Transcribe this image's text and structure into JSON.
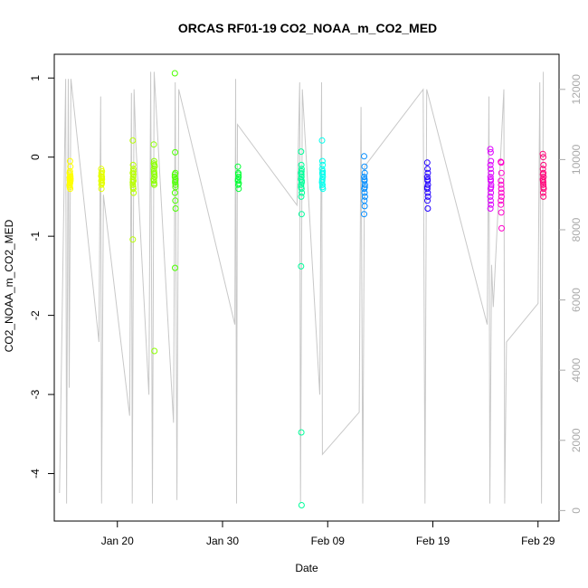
{
  "chart_data": {
    "type": "scatter",
    "title": "ORCAS RF01-19 CO2_NOAA_m_CO2_MED",
    "xlabel": "Date",
    "ylabel": "CO2_NOAA_m_CO2_MED",
    "xlim": [
      "2016-01-14",
      "2016-03-02"
    ],
    "ylim": [
      -4.6,
      1.3
    ],
    "x_ticks": [
      {
        "date": "2016-01-20",
        "label": "Jan 20"
      },
      {
        "date": "2016-01-30",
        "label": "Jan 30"
      },
      {
        "date": "2016-02-09",
        "label": "Feb 09"
      },
      {
        "date": "2016-02-19",
        "label": "Feb 19"
      },
      {
        "date": "2016-02-29",
        "label": "Feb 29"
      }
    ],
    "y_ticks": [
      1,
      0,
      -1,
      -2,
      -3,
      -4
    ],
    "y2_ticks": [
      0,
      2000,
      4000,
      6000,
      8000,
      10000,
      12000
    ],
    "y2lim": [
      -300,
      13000
    ],
    "colors": {
      "axis": "#000000",
      "secondary_axis": "#aaaaaa",
      "altitude_line": "#c8c8c8"
    },
    "flights": [
      {
        "date": "2016-01-15",
        "color": "#ffff00",
        "values": [
          -0.35,
          -0.3,
          -0.25,
          -0.2,
          -0.32,
          -0.28,
          -0.38,
          -0.22,
          -0.3,
          -0.18,
          -0.4,
          -0.26,
          -0.33,
          -0.24,
          -0.36,
          -0.05,
          -0.12,
          -0.29,
          -0.31,
          -0.27
        ]
      },
      {
        "date": "2016-01-18",
        "color": "#e5ff00",
        "values": [
          -0.15,
          -0.2,
          -0.25,
          -0.3,
          -0.22,
          -0.28,
          -0.35,
          -0.32,
          -0.18,
          -0.4,
          -0.26,
          -0.24,
          -0.3,
          -0.33
        ]
      },
      {
        "date": "2016-01-21",
        "color": "#b8ff00",
        "values": [
          0.21,
          -0.1,
          -0.15,
          -0.2,
          -0.25,
          -0.3,
          -0.35,
          -0.4,
          -0.45,
          -0.28,
          -0.22,
          -0.32,
          -0.38,
          -0.18,
          -1.04,
          -0.3
        ]
      },
      {
        "date": "2016-01-23",
        "color": "#8cff00",
        "values": [
          0.16,
          -0.05,
          -0.1,
          -0.15,
          -0.2,
          -0.25,
          -0.3,
          -0.35,
          -0.12,
          -0.18,
          -0.22,
          -0.28,
          -0.33,
          -2.45,
          -0.08
        ]
      },
      {
        "date": "2016-01-25",
        "color": "#4cff00",
        "values": [
          1.06,
          0.06,
          -0.2,
          -0.25,
          -0.3,
          -0.35,
          -0.45,
          -0.55,
          -0.65,
          -1.4,
          -0.28,
          -0.22,
          -0.32,
          -0.38
        ]
      },
      {
        "date": "2016-01-31",
        "color": "#00ff33",
        "values": [
          -0.12,
          -0.2,
          -0.25,
          -0.3,
          -0.35,
          -0.4,
          -0.28,
          -0.22,
          -0.33
        ]
      },
      {
        "date": "2016-02-06",
        "color": "#00ff9a",
        "values": [
          0.07,
          -0.1,
          -0.15,
          -0.2,
          -0.25,
          -0.3,
          -0.35,
          -0.4,
          -0.45,
          -0.5,
          -0.72,
          -1.38,
          -3.48,
          -4.4,
          -0.28,
          -0.22,
          -0.32,
          -0.38,
          -0.18
        ]
      },
      {
        "date": "2016-02-08",
        "color": "#00ffee",
        "values": [
          0.21,
          -0.05,
          -0.1,
          -0.15,
          -0.2,
          -0.25,
          -0.3,
          -0.35,
          -0.4,
          -0.28,
          -0.22,
          -0.32,
          -0.38,
          -0.18
        ]
      },
      {
        "date": "2016-02-12",
        "color": "#008cff",
        "values": [
          0.01,
          -0.12,
          -0.2,
          -0.25,
          -0.3,
          -0.35,
          -0.4,
          -0.45,
          -0.5,
          -0.55,
          -0.62,
          -0.72,
          -0.28,
          -0.38
        ]
      },
      {
        "date": "2016-02-18",
        "color": "#2200ff",
        "values": [
          -0.07,
          -0.15,
          -0.2,
          -0.25,
          -0.3,
          -0.35,
          -0.4,
          -0.45,
          -0.5,
          -0.55,
          -0.65,
          -0.38,
          -0.28
        ]
      },
      {
        "date": "2016-02-24",
        "color": "#dd00ff",
        "values": [
          0.1,
          0.06,
          -0.05,
          -0.1,
          -0.15,
          -0.2,
          -0.25,
          -0.3,
          -0.35,
          -0.4,
          -0.45,
          -0.5,
          -0.55,
          -0.6,
          -0.65,
          -0.28,
          -0.38
        ]
      },
      {
        "date": "2016-02-25",
        "color": "#ff00cc",
        "values": [
          -0.06,
          -0.07,
          -0.2,
          -0.3,
          -0.4,
          -0.5,
          -0.6,
          -0.7,
          -0.9,
          -0.35,
          -0.45,
          -0.55
        ]
      },
      {
        "date": "2016-02-29",
        "color": "#ff0077",
        "values": [
          0.04,
          0.0,
          -0.1,
          -0.15,
          -0.2,
          -0.25,
          -0.3,
          -0.35,
          -0.4,
          -0.45,
          -0.5,
          -0.28,
          -0.32,
          -0.38,
          -0.22
        ]
      }
    ],
    "altitude_trace": [
      [
        "2016-01-14 12:00",
        500
      ],
      [
        "2016-01-15 02:00",
        12300
      ],
      [
        "2016-01-15 04:00",
        200
      ],
      [
        "2016-01-15 08:00",
        12300
      ],
      [
        "2016-01-15 10:00",
        3500
      ],
      [
        "2016-01-15 14:00",
        12300
      ],
      [
        "2016-01-18 06:00",
        4800
      ],
      [
        "2016-01-18 10:00",
        11800
      ],
      [
        "2016-01-18 12:00",
        200
      ],
      [
        "2016-01-18 16:00",
        9000
      ],
      [
        "2016-01-21 04:00",
        2700
      ],
      [
        "2016-01-21 08:00",
        11900
      ],
      [
        "2016-01-21 10:00",
        200
      ],
      [
        "2016-01-21 14:00",
        12000
      ],
      [
        "2016-01-21 18:00",
        10500
      ],
      [
        "2016-01-23 00:00",
        3300
      ],
      [
        "2016-01-23 04:00",
        12500
      ],
      [
        "2016-01-23 08:00",
        200
      ],
      [
        "2016-01-23 12:00",
        12500
      ],
      [
        "2016-01-25 08:00",
        2500
      ],
      [
        "2016-01-25 12:00",
        12200
      ],
      [
        "2016-01-25 16:00",
        300
      ],
      [
        "2016-01-25 20:00",
        12000
      ],
      [
        "2016-01-31 04:00",
        5300
      ],
      [
        "2016-01-31 06:00",
        12300
      ],
      [
        "2016-01-31 08:00",
        200
      ],
      [
        "2016-01-31 10:00",
        11000
      ],
      [
        "2016-02-06 02:00",
        8700
      ],
      [
        "2016-02-06 08:00",
        12200
      ],
      [
        "2016-02-06 10:00",
        200
      ],
      [
        "2016-02-06 14:00",
        12000
      ],
      [
        "2016-02-08 06:00",
        3300
      ],
      [
        "2016-02-08 10:00",
        12200
      ],
      [
        "2016-02-08 12:00",
        1600
      ],
      [
        "2016-02-12 00:00",
        2800
      ],
      [
        "2016-02-12 04:00",
        11500
      ],
      [
        "2016-02-12 08:00",
        200
      ],
      [
        "2016-02-12 12:00",
        9800
      ],
      [
        "2016-02-18 02:00",
        12000
      ],
      [
        "2016-02-18 06:00",
        200
      ],
      [
        "2016-02-18 10:00",
        12000
      ],
      [
        "2016-02-24 04:00",
        5300
      ],
      [
        "2016-02-24 08:00",
        11800
      ],
      [
        "2016-02-24 10:00",
        200
      ],
      [
        "2016-02-24 14:00",
        7000
      ],
      [
        "2016-02-24 18:00",
        5800
      ],
      [
        "2016-02-25 18:00",
        12000
      ],
      [
        "2016-02-25 20:00",
        200
      ],
      [
        "2016-02-26 00:00",
        4800
      ],
      [
        "2016-02-29 00:00",
        5900
      ],
      [
        "2016-02-29 04:00",
        12200
      ],
      [
        "2016-02-29 08:00",
        200
      ],
      [
        "2016-02-29 12:00",
        12500
      ]
    ]
  }
}
